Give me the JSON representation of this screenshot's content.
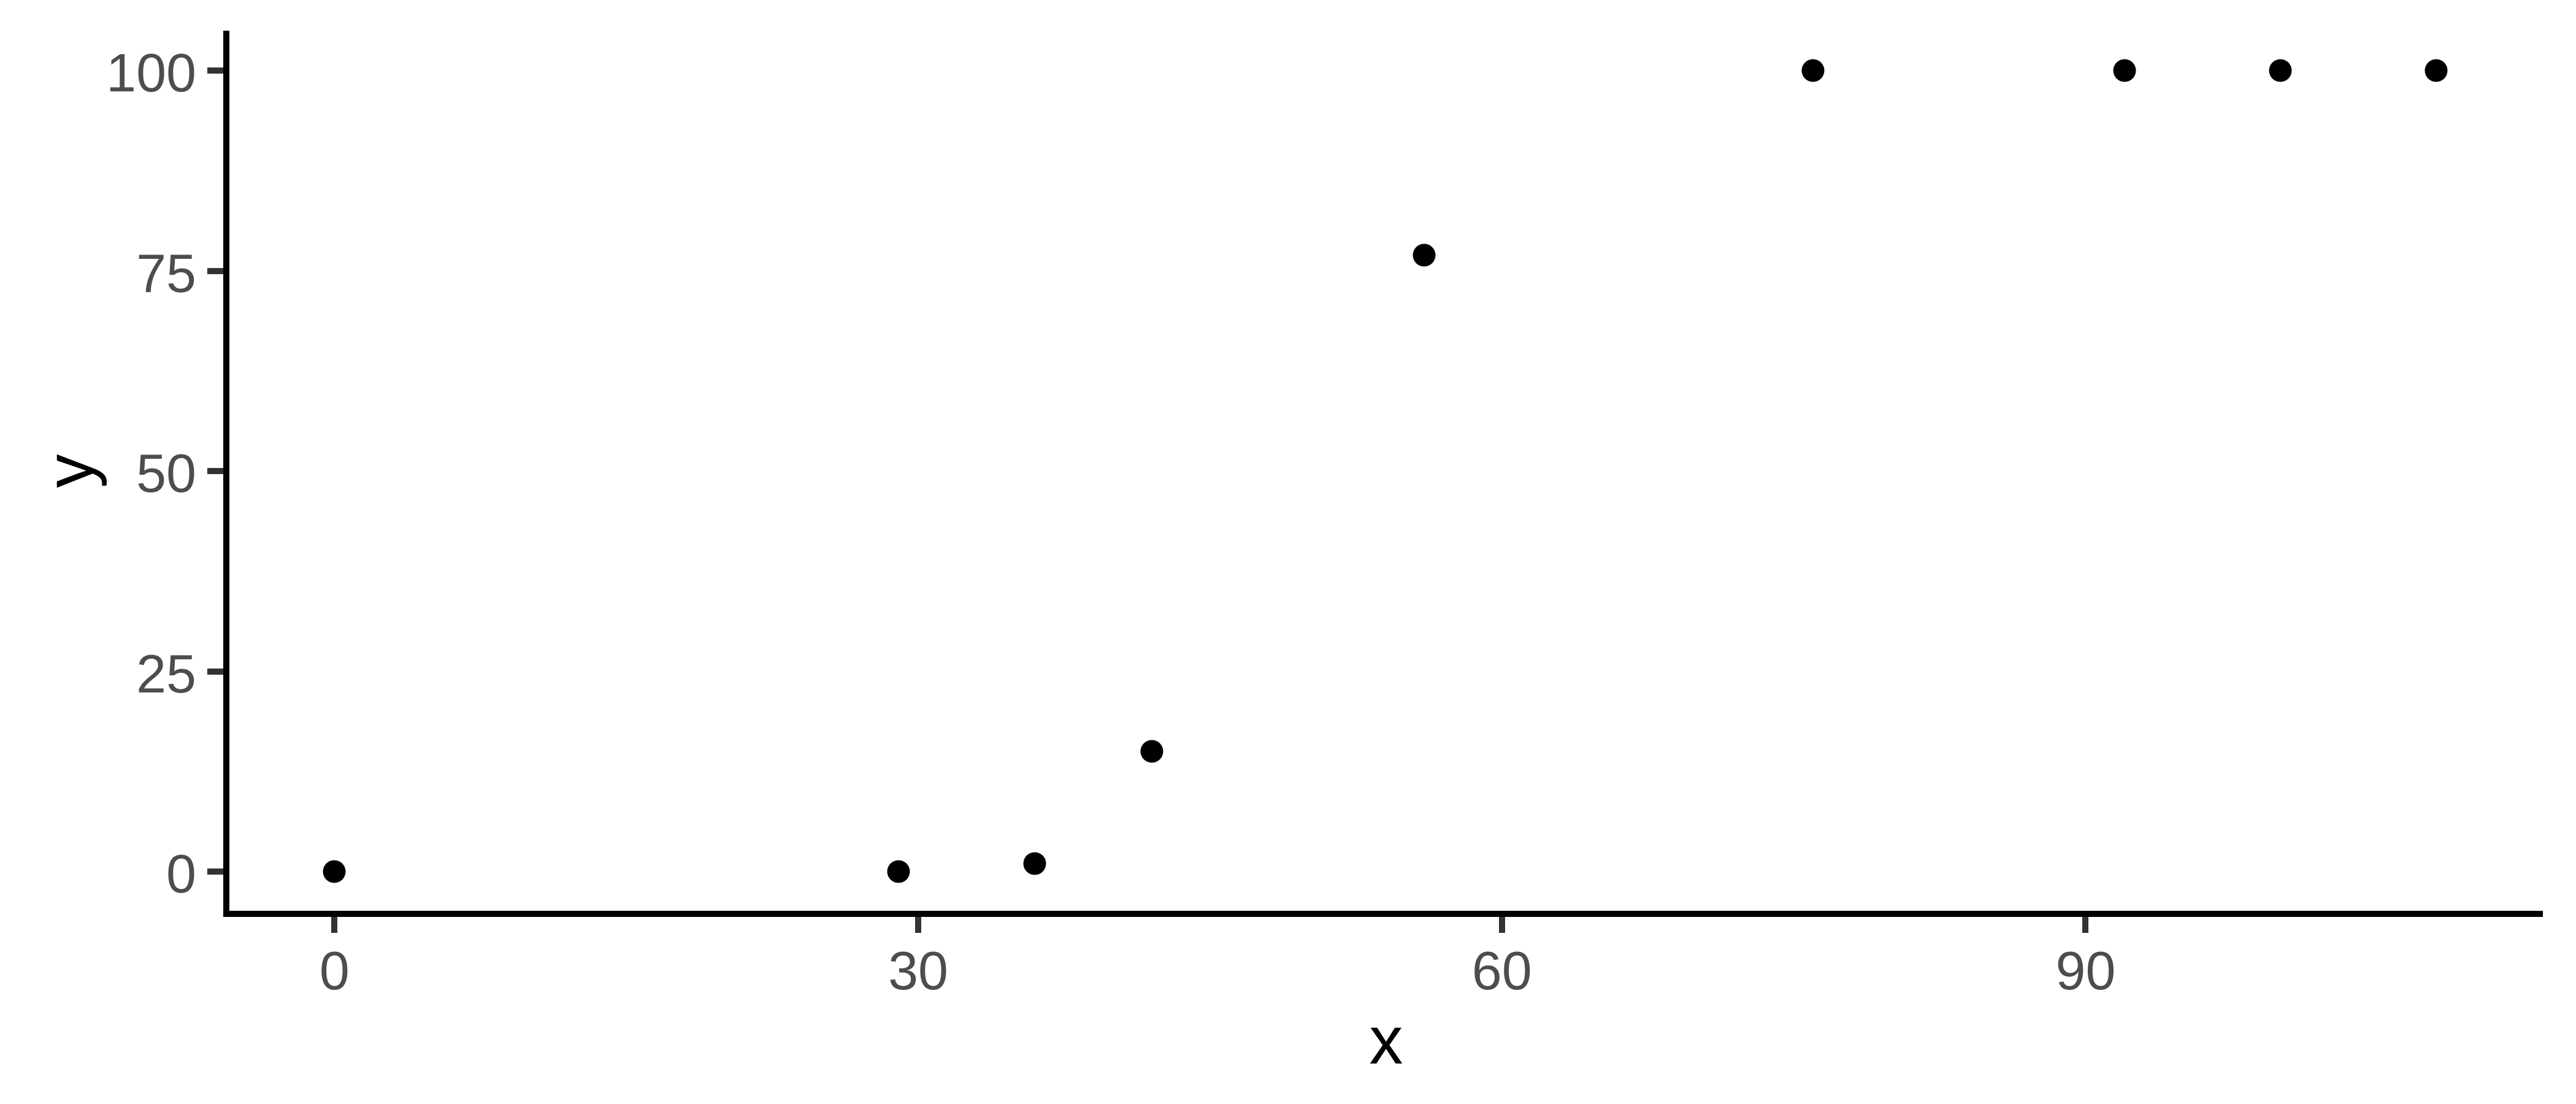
{
  "chart_data": {
    "type": "scatter",
    "title": "",
    "xlabel": "x",
    "ylabel": "y",
    "x": [
      0,
      29,
      36,
      42,
      56,
      76,
      92,
      100,
      108
    ],
    "y": [
      0,
      0,
      1,
      15,
      77,
      100,
      100,
      100,
      100
    ],
    "x_ticks": [
      0,
      30,
      60,
      90
    ],
    "y_ticks": [
      0,
      25,
      50,
      75,
      100
    ],
    "xlim": [
      -5.4,
      113.5
    ],
    "ylim": [
      -4.9,
      105.0
    ],
    "grid": false,
    "legend": "none",
    "theme": "classic",
    "colors": {
      "point": "#000000",
      "axis_line": "#000000",
      "tick_mark": "#333333",
      "tick_label": "#4d4d4d",
      "axis_title": "#000000",
      "background": "#ffffff"
    }
  }
}
